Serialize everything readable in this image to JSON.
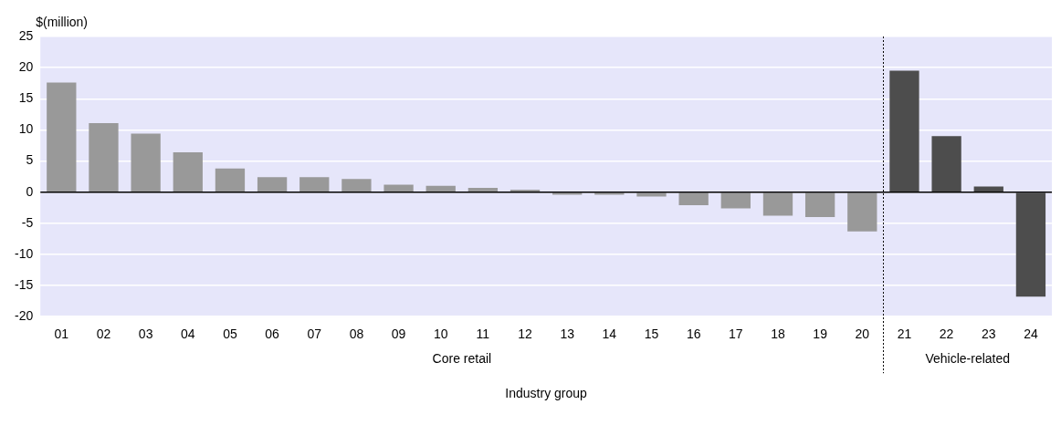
{
  "chart_data": {
    "type": "bar",
    "ylabel": "$(million)",
    "xlabel": "Industry group",
    "x": [
      1,
      2,
      3,
      4,
      5,
      6,
      7,
      8,
      9,
      10,
      11,
      12,
      13,
      14,
      15,
      16,
      17,
      18,
      19,
      20,
      21,
      22,
      23,
      24
    ],
    "values": [
      17.6,
      11.1,
      9.4,
      6.4,
      3.8,
      2.4,
      2.4,
      2.1,
      1.2,
      1.0,
      0.7,
      0.4,
      -0.4,
      -0.4,
      -0.7,
      -2.1,
      -2.6,
      -3.8,
      -4.0,
      -6.3,
      19.5,
      9.0,
      0.9,
      -16.8
    ],
    "colors": [
      "#999999",
      "#999999",
      "#999999",
      "#999999",
      "#999999",
      "#999999",
      "#999999",
      "#999999",
      "#999999",
      "#999999",
      "#999999",
      "#999999",
      "#999999",
      "#999999",
      "#999999",
      "#999999",
      "#999999",
      "#999999",
      "#999999",
      "#999999",
      "#4d4d4d",
      "#4d4d4d",
      "#4d4d4d",
      "#4d4d4d"
    ],
    "xlim": [
      0.5,
      24.5
    ],
    "xticks": [
      {
        "value": 1,
        "label": "01"
      },
      {
        "value": 2,
        "label": "02"
      },
      {
        "value": 3,
        "label": "03"
      },
      {
        "value": 4,
        "label": "04"
      },
      {
        "value": 5,
        "label": "05"
      },
      {
        "value": 6,
        "label": "06"
      },
      {
        "value": 7,
        "label": "07"
      },
      {
        "value": 8,
        "label": "08"
      },
      {
        "value": 9,
        "label": "09"
      },
      10,
      11,
      12,
      13,
      14,
      15,
      16,
      17,
      18,
      19,
      20,
      21,
      22,
      23,
      24
    ],
    "ylim": [
      -20,
      25
    ],
    "yticks": [
      -20,
      -15,
      -10,
      -5,
      0,
      5,
      10,
      15,
      20,
      25
    ],
    "grid": "y",
    "ref_lines": [
      {
        "axis": "x",
        "value": 20.5,
        "color": "#000000",
        "line_style": "dashed"
      }
    ],
    "annotations": [
      "Core retail",
      "Vehicle-related"
    ]
  }
}
